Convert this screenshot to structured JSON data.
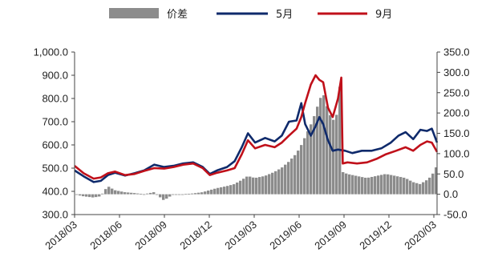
{
  "chart_data": {
    "type": "line",
    "legend": [
      {
        "key": "spread",
        "label": "价差",
        "color": "#8c8c8c",
        "kind": "bar"
      },
      {
        "key": "may",
        "label": "5月",
        "color": "#0f2a6b",
        "kind": "line"
      },
      {
        "key": "sep",
        "label": "9月",
        "color": "#c0101a",
        "kind": "line"
      }
    ],
    "x_tick_labels": [
      "2018/03",
      "2018/06",
      "2018/09",
      "2018/12",
      "2019/03",
      "2019/06",
      "2019/09",
      "2019/12",
      "2020/03"
    ],
    "y_left": {
      "min": 300,
      "max": 1000,
      "ticks": [
        "1,000.0",
        "900.0",
        "800.0",
        "700.0",
        "600.0",
        "500.0",
        "400.0",
        "300.0"
      ]
    },
    "y_right": {
      "min": -50,
      "max": 350,
      "ticks": [
        "350.0",
        "300.0",
        "250.0",
        "200.0",
        "150.0",
        "100.0",
        "50.0",
        "0.0",
        "-50.0"
      ]
    },
    "x_start": "2018-03-01",
    "x_end": "2020-03-31",
    "series": [
      {
        "name": "5月",
        "points": [
          [
            "2018-03-01",
            490
          ],
          [
            "2018-03-20",
            465
          ],
          [
            "2018-04-10",
            440
          ],
          [
            "2018-04-25",
            445
          ],
          [
            "2018-05-10",
            470
          ],
          [
            "2018-05-25",
            480
          ],
          [
            "2018-06-15",
            468
          ],
          [
            "2018-07-05",
            478
          ],
          [
            "2018-07-25",
            490
          ],
          [
            "2018-08-15",
            515
          ],
          [
            "2018-09-05",
            505
          ],
          [
            "2018-09-25",
            510
          ],
          [
            "2018-10-15",
            520
          ],
          [
            "2018-11-05",
            525
          ],
          [
            "2018-11-25",
            505
          ],
          [
            "2018-12-10",
            475
          ],
          [
            "2018-12-25",
            490
          ],
          [
            "2019-01-15",
            505
          ],
          [
            "2019-01-31",
            530
          ],
          [
            "2019-02-15",
            590
          ],
          [
            "2019-02-28",
            650
          ],
          [
            "2019-03-15",
            610
          ],
          [
            "2019-04-05",
            630
          ],
          [
            "2019-04-25",
            615
          ],
          [
            "2019-05-10",
            640
          ],
          [
            "2019-05-25",
            700
          ],
          [
            "2019-06-10",
            705
          ],
          [
            "2019-06-20",
            780
          ],
          [
            "2019-06-28",
            690
          ],
          [
            "2019-07-10",
            640
          ],
          [
            "2019-07-20",
            680
          ],
          [
            "2019-07-28",
            720
          ],
          [
            "2019-08-05",
            690
          ],
          [
            "2019-08-15",
            620
          ],
          [
            "2019-08-25",
            575
          ],
          [
            "2019-09-05",
            580
          ],
          [
            "2019-09-20",
            575
          ],
          [
            "2019-10-05",
            565
          ],
          [
            "2019-10-25",
            575
          ],
          [
            "2019-11-15",
            575
          ],
          [
            "2019-12-05",
            585
          ],
          [
            "2019-12-25",
            610
          ],
          [
            "2020-01-10",
            640
          ],
          [
            "2020-01-25",
            655
          ],
          [
            "2020-02-10",
            625
          ],
          [
            "2020-02-25",
            665
          ],
          [
            "2020-03-10",
            660
          ],
          [
            "2020-03-20",
            670
          ],
          [
            "2020-03-31",
            610
          ]
        ]
      },
      {
        "name": "9月",
        "points": [
          [
            "2018-03-01",
            510
          ],
          [
            "2018-03-20",
            478
          ],
          [
            "2018-04-10",
            455
          ],
          [
            "2018-04-25",
            460
          ],
          [
            "2018-05-10",
            478
          ],
          [
            "2018-05-25",
            485
          ],
          [
            "2018-06-15",
            470
          ],
          [
            "2018-07-05",
            475
          ],
          [
            "2018-07-25",
            488
          ],
          [
            "2018-08-15",
            500
          ],
          [
            "2018-09-05",
            498
          ],
          [
            "2018-09-25",
            505
          ],
          [
            "2018-10-15",
            515
          ],
          [
            "2018-11-05",
            520
          ],
          [
            "2018-11-25",
            500
          ],
          [
            "2018-12-10",
            470
          ],
          [
            "2018-12-25",
            480
          ],
          [
            "2019-01-15",
            490
          ],
          [
            "2019-01-31",
            500
          ],
          [
            "2019-02-15",
            560
          ],
          [
            "2019-02-28",
            620
          ],
          [
            "2019-03-15",
            585
          ],
          [
            "2019-04-05",
            600
          ],
          [
            "2019-04-25",
            590
          ],
          [
            "2019-05-10",
            610
          ],
          [
            "2019-05-25",
            640
          ],
          [
            "2019-06-10",
            670
          ],
          [
            "2019-06-20",
            720
          ],
          [
            "2019-06-28",
            780
          ],
          [
            "2019-07-10",
            860
          ],
          [
            "2019-07-20",
            900
          ],
          [
            "2019-07-28",
            880
          ],
          [
            "2019-08-05",
            870
          ],
          [
            "2019-08-15",
            760
          ],
          [
            "2019-08-25",
            720
          ],
          [
            "2019-09-05",
            800
          ],
          [
            "2019-09-12",
            890
          ],
          [
            "2019-09-15",
            520
          ],
          [
            "2019-09-25",
            525
          ],
          [
            "2019-10-15",
            520
          ],
          [
            "2019-11-05",
            525
          ],
          [
            "2019-11-25",
            540
          ],
          [
            "2019-12-15",
            560
          ],
          [
            "2020-01-05",
            575
          ],
          [
            "2020-01-25",
            590
          ],
          [
            "2020-02-10",
            575
          ],
          [
            "2020-02-25",
            600
          ],
          [
            "2020-03-10",
            615
          ],
          [
            "2020-03-20",
            610
          ],
          [
            "2020-03-31",
            570
          ]
        ]
      },
      {
        "name": "价差",
        "points": [
          [
            "2018-03-01",
            0
          ],
          [
            "2018-03-20",
            -5
          ],
          [
            "2018-04-10",
            -8
          ],
          [
            "2018-04-25",
            -5
          ],
          [
            "2018-05-10",
            20
          ],
          [
            "2018-05-25",
            10
          ],
          [
            "2018-06-15",
            5
          ],
          [
            "2018-07-05",
            3
          ],
          [
            "2018-07-25",
            0
          ],
          [
            "2018-08-15",
            5
          ],
          [
            "2018-09-05",
            -15
          ],
          [
            "2018-09-25",
            0
          ],
          [
            "2018-10-15",
            0
          ],
          [
            "2018-11-05",
            2
          ],
          [
            "2018-11-25",
            5
          ],
          [
            "2018-12-10",
            10
          ],
          [
            "2018-12-25",
            15
          ],
          [
            "2019-01-15",
            20
          ],
          [
            "2019-01-31",
            25
          ],
          [
            "2019-02-15",
            35
          ],
          [
            "2019-02-28",
            45
          ],
          [
            "2019-03-15",
            40
          ],
          [
            "2019-04-05",
            45
          ],
          [
            "2019-04-25",
            55
          ],
          [
            "2019-05-10",
            65
          ],
          [
            "2019-05-25",
            80
          ],
          [
            "2019-06-10",
            100
          ],
          [
            "2019-06-20",
            120
          ],
          [
            "2019-06-28",
            140
          ],
          [
            "2019-07-10",
            170
          ],
          [
            "2019-07-20",
            200
          ],
          [
            "2019-07-28",
            230
          ],
          [
            "2019-08-05",
            250
          ],
          [
            "2019-08-15",
            210
          ],
          [
            "2019-08-25",
            180
          ],
          [
            "2019-09-05",
            200
          ],
          [
            "2019-09-12",
            305
          ],
          [
            "2019-09-15",
            55
          ],
          [
            "2019-09-25",
            50
          ],
          [
            "2019-10-15",
            45
          ],
          [
            "2019-11-05",
            40
          ],
          [
            "2019-11-25",
            45
          ],
          [
            "2019-12-15",
            50
          ],
          [
            "2020-01-05",
            45
          ],
          [
            "2020-01-25",
            40
          ],
          [
            "2020-02-10",
            30
          ],
          [
            "2020-02-25",
            25
          ],
          [
            "2020-03-10",
            35
          ],
          [
            "2020-03-20",
            45
          ],
          [
            "2020-03-31",
            70
          ]
        ]
      }
    ]
  }
}
